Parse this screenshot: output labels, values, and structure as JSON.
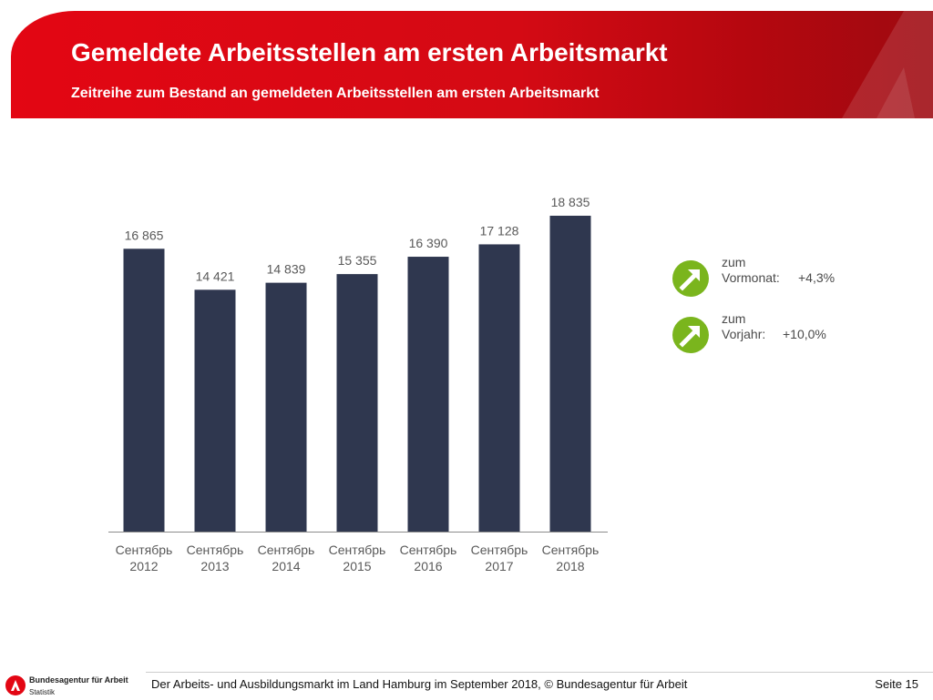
{
  "header": {
    "title": "Gemeldete Arbeitsstellen am ersten Arbeitsmarkt",
    "subtitle": "Zeitreihe zum Bestand an gemeldeten Arbeitsstellen am ersten Arbeitsmarkt"
  },
  "chart_data": {
    "type": "bar",
    "categories": [
      [
        "Сентябрь",
        "2012"
      ],
      [
        "Сентябрь",
        "2013"
      ],
      [
        "Сентябрь",
        "2014"
      ],
      [
        "Сентябрь",
        "2015"
      ],
      [
        "Сентябрь",
        "2016"
      ],
      [
        "Сентябрь",
        "2017"
      ],
      [
        "Сентябрь",
        "2018"
      ]
    ],
    "values": [
      16865,
      14421,
      14839,
      15355,
      16390,
      17128,
      18835
    ],
    "labels": [
      "16 865",
      "14 421",
      "14 839",
      "15 355",
      "16 390",
      "17 128",
      "18 835"
    ],
    "ylim": [
      0,
      19500
    ],
    "bar_color": "#2f374f",
    "label_color": "#595959"
  },
  "indicators": [
    {
      "line1": "zum",
      "line2": "Vormonat:",
      "value": "+4,3%",
      "icon": "arrow-up-right-icon",
      "color": "#7ab51d"
    },
    {
      "line1": "zum",
      "line2": "Vorjahr:",
      "value": "+10,0%",
      "icon": "arrow-up-right-icon",
      "color": "#7ab51d"
    }
  ],
  "footer": {
    "org": "Bundesagentur für Arbeit",
    "dept": "Statistik",
    "text": "Der Arbeits- und Ausbildungsmarkt im Land Hamburg im September 2018, © Bundesagentur für Arbeit",
    "page": "Seite 15"
  },
  "colors": {
    "brand": "#e30613",
    "accent_green": "#7ab51d"
  }
}
